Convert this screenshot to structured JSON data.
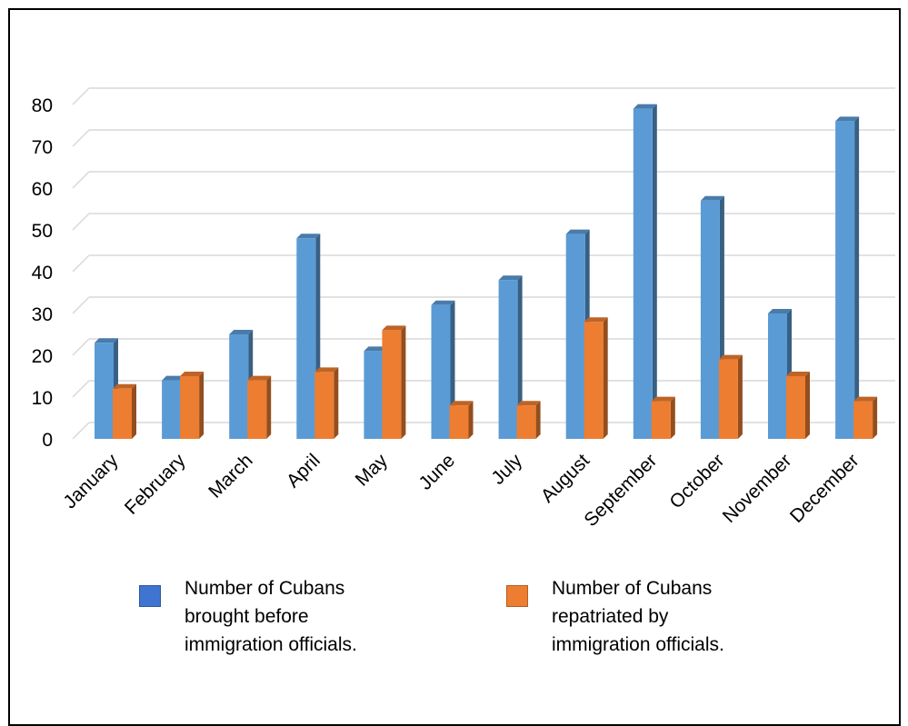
{
  "chart_data": {
    "type": "bar",
    "categories": [
      "January",
      "February",
      "March",
      "April",
      "May",
      "June",
      "July",
      "August",
      "September",
      "October",
      "November",
      "December"
    ],
    "series": [
      {
        "name": "Number of Cubans brought before immigration officials.",
        "values": [
          23,
          14,
          25,
          48,
          21,
          32,
          38,
          49,
          79,
          57,
          30,
          76
        ]
      },
      {
        "name": "Number of Cubans repatriated by immigration officials.",
        "values": [
          12,
          15,
          14,
          16,
          26,
          8,
          8,
          28,
          9,
          19,
          15,
          9
        ]
      }
    ],
    "ylim": [
      0,
      80
    ],
    "yticks": [
      0,
      10,
      20,
      30,
      40,
      50,
      60,
      70,
      80
    ],
    "grid": true,
    "legend_position": "bottom",
    "colors": {
      "series1": "#5b9bd5",
      "series2": "#ed7d31"
    }
  },
  "legend": {
    "items": [
      {
        "line1": "Number of Cubans",
        "line2": "brought before",
        "line3": "immigration officials.",
        "color": "#3f74d0"
      },
      {
        "line1": "Number of Cubans",
        "line2": "repatriated by",
        "line3": "immigration officials.",
        "color": "#ed7d31"
      }
    ]
  }
}
